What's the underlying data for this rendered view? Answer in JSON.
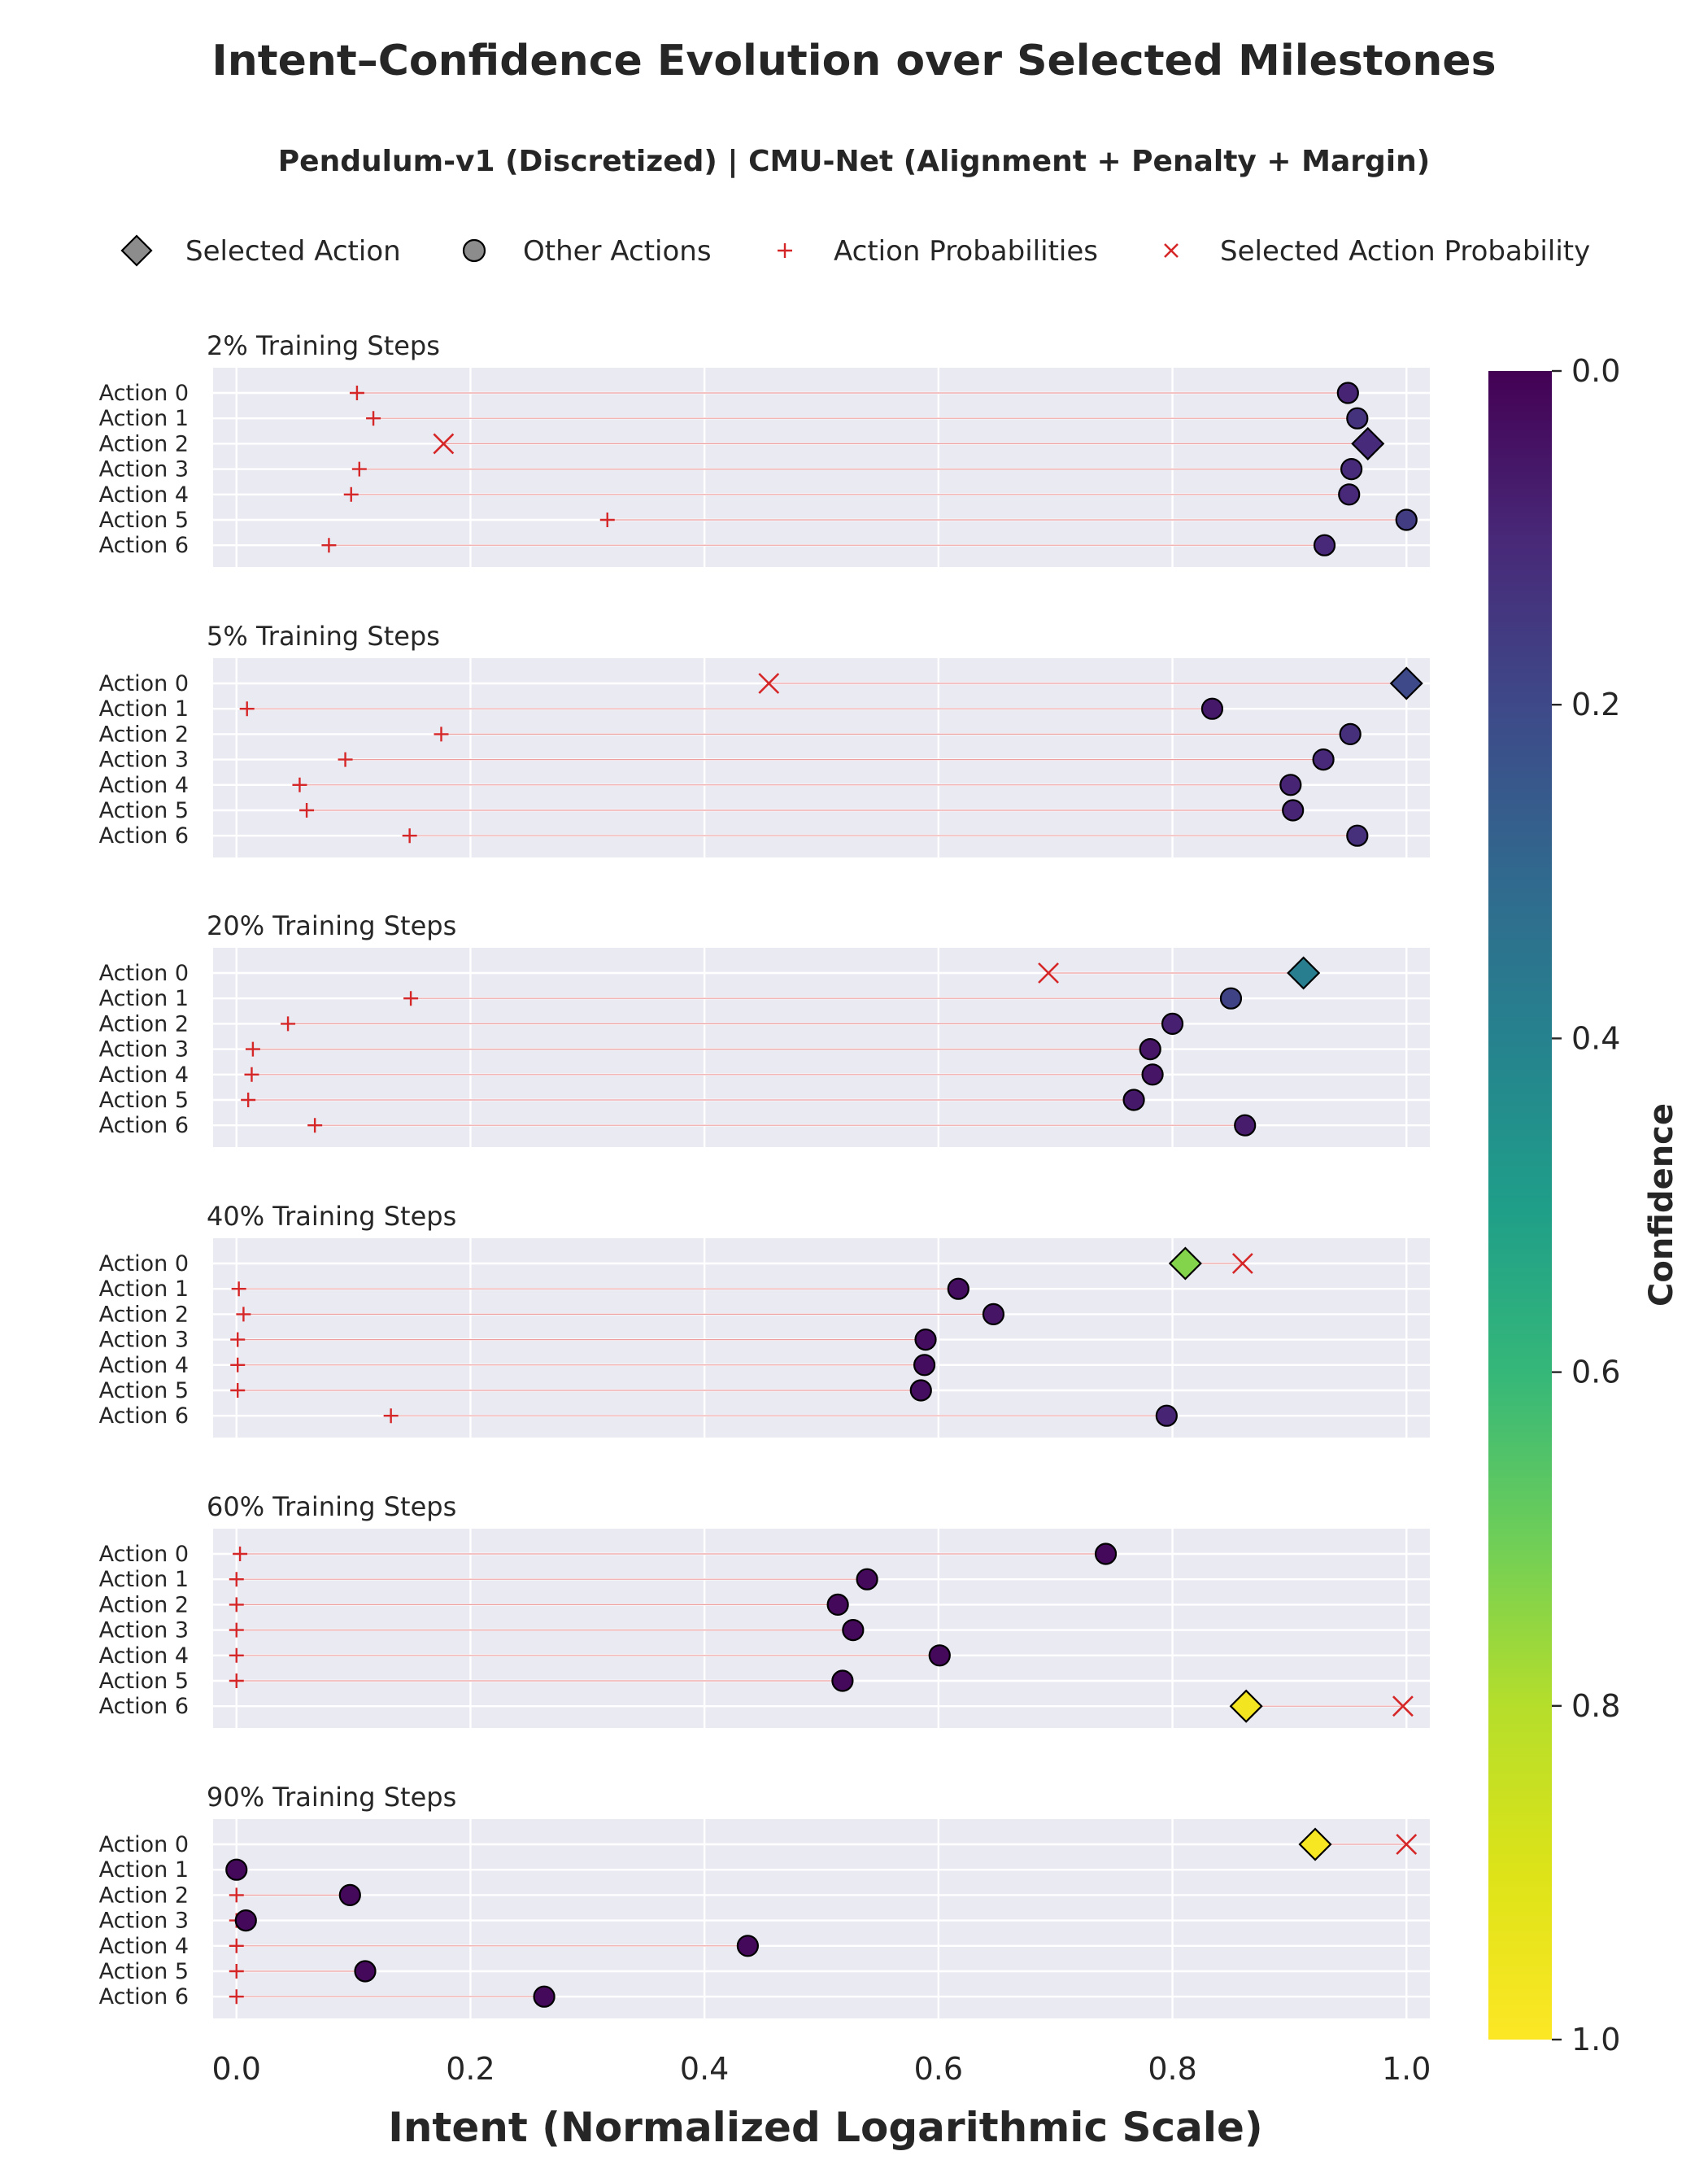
{
  "chart_data": {
    "type": "scatter",
    "title": "Intent–Confidence Evolution over Selected Milestones",
    "subtitle": "Pendulum-v1 (Discretized) | CMU-Net (Alignment + Penalty + Margin)",
    "xlabel": "Intent (Normalized Logarithmic Scale)",
    "xlim": [
      -0.02,
      1.02
    ],
    "xticks": [
      "0.0",
      "0.2",
      "0.4",
      "0.6",
      "0.8",
      "1.0"
    ],
    "xtick_values": [
      0.0,
      0.2,
      0.4,
      0.6,
      0.8,
      1.0
    ],
    "grid": true,
    "legend": {
      "placement": "top",
      "items": [
        {
          "label": "Selected Action",
          "marker": "diamond"
        },
        {
          "label": "Other Actions",
          "marker": "circle"
        },
        {
          "label": "Action Probabilities",
          "marker": "plus"
        },
        {
          "label": "Selected Action Probability",
          "marker": "x"
        }
      ]
    },
    "colorbar": {
      "label": "Confidence",
      "colormap": "viridis_r",
      "range": [
        0.0,
        1.0
      ],
      "ticks": [
        "0.0",
        "0.2",
        "0.4",
        "0.6",
        "0.8",
        "1.0"
      ],
      "tick_values": [
        0.0,
        0.2,
        0.4,
        0.6,
        0.8,
        1.0
      ]
    },
    "colors": {
      "probability": "#d62728",
      "panel_bg": "#eaeaf2",
      "grid": "#ffffff",
      "edge": "#000000"
    },
    "panels": [
      {
        "title": "2% Training Steps",
        "actions": [
          "Action 0",
          "Action 1",
          "Action 2",
          "Action 3",
          "Action 4",
          "Action 5",
          "Action 6"
        ],
        "selected": 2,
        "intent": [
          0.95,
          0.958,
          0.967,
          0.953,
          0.951,
          1.0,
          0.93
        ],
        "probability": [
          0.103,
          0.117,
          0.177,
          0.105,
          0.098,
          0.317,
          0.079
        ],
        "confidence": [
          0.09,
          0.13,
          0.11,
          0.11,
          0.1,
          0.16,
          0.1
        ]
      },
      {
        "title": "5% Training Steps",
        "actions": [
          "Action 0",
          "Action 1",
          "Action 2",
          "Action 3",
          "Action 4",
          "Action 5",
          "Action 6"
        ],
        "selected": 0,
        "intent": [
          1.0,
          0.834,
          0.952,
          0.929,
          0.901,
          0.903,
          0.958
        ],
        "probability": [
          0.455,
          0.009,
          0.175,
          0.093,
          0.054,
          0.06,
          0.148
        ],
        "confidence": [
          0.2,
          0.06,
          0.12,
          0.1,
          0.09,
          0.09,
          0.12
        ]
      },
      {
        "title": "20% Training Steps",
        "actions": [
          "Action 0",
          "Action 1",
          "Action 2",
          "Action 3",
          "Action 4",
          "Action 5",
          "Action 6"
        ],
        "selected": 0,
        "intent": [
          0.912,
          0.85,
          0.8,
          0.781,
          0.783,
          0.767,
          0.862
        ],
        "probability": [
          0.694,
          0.149,
          0.044,
          0.014,
          0.013,
          0.01,
          0.067
        ],
        "confidence": [
          0.38,
          0.18,
          0.08,
          0.05,
          0.05,
          0.06,
          0.07
        ]
      },
      {
        "title": "40% Training Steps",
        "actions": [
          "Action 0",
          "Action 1",
          "Action 2",
          "Action 3",
          "Action 4",
          "Action 5",
          "Action 6"
        ],
        "selected": 0,
        "intent": [
          0.811,
          0.617,
          0.647,
          0.589,
          0.588,
          0.585,
          0.795
        ],
        "probability": [
          0.86,
          0.002,
          0.006,
          0.001,
          0.001,
          0.001,
          0.132
        ],
        "confidence": [
          0.73,
          0.03,
          0.05,
          0.03,
          0.03,
          0.03,
          0.09
        ]
      },
      {
        "title": "60% Training Steps",
        "actions": [
          "Action 0",
          "Action 1",
          "Action 2",
          "Action 3",
          "Action 4",
          "Action 5",
          "Action 6"
        ],
        "selected": 6,
        "intent": [
          0.743,
          0.539,
          0.514,
          0.527,
          0.601,
          0.518,
          0.863
        ],
        "probability": [
          0.003,
          0.0,
          0.0,
          0.0,
          0.0,
          0.0,
          0.997
        ],
        "confidence": [
          0.02,
          0.02,
          0.02,
          0.02,
          0.02,
          0.02,
          0.97
        ]
      },
      {
        "title": "90% Training Steps",
        "actions": [
          "Action 0",
          "Action 1",
          "Action 2",
          "Action 3",
          "Action 4",
          "Action 5",
          "Action 6"
        ],
        "selected": 0,
        "intent": [
          0.922,
          0.0,
          0.097,
          0.008,
          0.437,
          0.11,
          0.263
        ],
        "probability": [
          1.0,
          0.0,
          0.0,
          0.0,
          0.0,
          0.0,
          0.0
        ],
        "confidence": [
          0.98,
          0.02,
          0.02,
          0.02,
          0.02,
          0.02,
          0.02
        ]
      }
    ]
  }
}
